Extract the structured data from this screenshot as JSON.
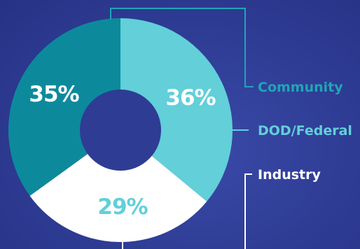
{
  "chart_data": {
    "type": "pie",
    "title": "",
    "categories": [
      "Community",
      "DOD/Federal",
      "Industry"
    ],
    "values": [
      35,
      36,
      29
    ],
    "value_labels": [
      "35%",
      "36%",
      "29%"
    ],
    "colors": [
      "#0c8a9c",
      "#62cfd9",
      "#ffffff"
    ],
    "label_colors": [
      "#ffffff",
      "#ffffff",
      "#62cfd9"
    ],
    "legend_colors": [
      "#1fa6b6",
      "#62cfd9",
      "#ffffff"
    ],
    "donut": true
  }
}
